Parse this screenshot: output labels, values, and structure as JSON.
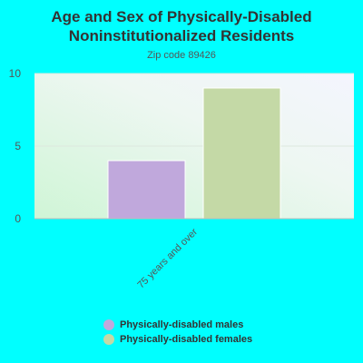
{
  "chart_data": {
    "type": "bar",
    "title": "Age and Sex of Physically-Disabled Noninstitutionalized Residents",
    "subtitle": "Zip code 89426",
    "categories": [
      "75 years and over"
    ],
    "series": [
      {
        "name": "Physically-disabled males",
        "values": [
          4
        ],
        "color": "#C0A8DC"
      },
      {
        "name": "Physically-disabled females",
        "values": [
          9
        ],
        "color": "#C4D9A6"
      }
    ],
    "yticks": [
      0,
      5,
      10
    ],
    "ylim": [
      0,
      10
    ],
    "grid": true,
    "legend": "bottom"
  }
}
